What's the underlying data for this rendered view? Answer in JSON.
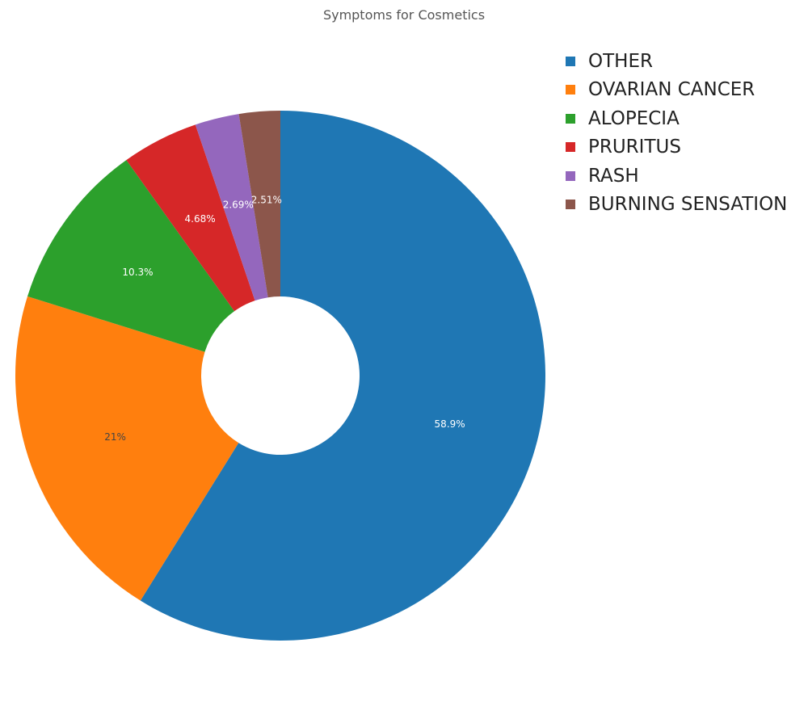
{
  "chart_data": {
    "type": "pie",
    "title": "Symptoms for Cosmetics",
    "hole": true,
    "legend_position": "top-right",
    "slices": [
      {
        "label": "OTHER",
        "value": 58.9,
        "text": "58.9%",
        "color": "#1f77b4",
        "text_color": "#ffffff"
      },
      {
        "label": "OVARIAN CANCER",
        "value": 21,
        "text": "21%",
        "color": "#ff7f0e",
        "text_color": "#444444"
      },
      {
        "label": "ALOPECIA",
        "value": 10.3,
        "text": "10.3%",
        "color": "#2ca02c",
        "text_color": "#ffffff"
      },
      {
        "label": "PRURITUS",
        "value": 4.68,
        "text": "4.68%",
        "color": "#d62728",
        "text_color": "#ffffff"
      },
      {
        "label": "RASH",
        "value": 2.69,
        "text": "2.69%",
        "color": "#9467bd",
        "text_color": "#ffffff"
      },
      {
        "label": "BURNING SENSATION",
        "value": 2.51,
        "text": "2.51%",
        "color": "#8c564b",
        "text_color": "#ffffff"
      }
    ]
  }
}
